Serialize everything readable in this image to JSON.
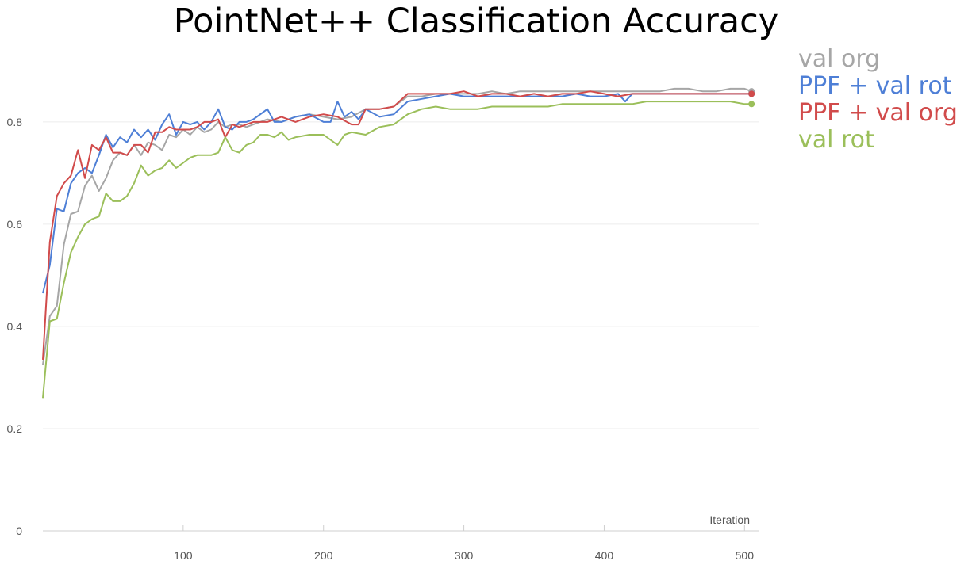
{
  "chart_data": {
    "type": "line",
    "title": "PointNet++ Classification Accuracy",
    "xlabel": "Iteration",
    "ylabel": "",
    "xlim": [
      0,
      510
    ],
    "ylim": [
      0,
      0.93
    ],
    "yticks": [
      0,
      0.2,
      0.4,
      0.6,
      0.8
    ],
    "xticks": [
      100,
      200,
      300,
      400,
      500
    ],
    "grid": true,
    "legend_position": "top-right",
    "series": [
      {
        "name": "val org",
        "color": "#a6a6a6",
        "x": [
          0,
          5,
          10,
          15,
          20,
          25,
          30,
          35,
          40,
          45,
          50,
          55,
          60,
          65,
          70,
          75,
          80,
          85,
          90,
          95,
          100,
          105,
          110,
          115,
          120,
          125,
          130,
          135,
          140,
          145,
          150,
          160,
          170,
          180,
          190,
          200,
          210,
          220,
          230,
          240,
          250,
          260,
          270,
          280,
          290,
          300,
          310,
          320,
          330,
          340,
          350,
          360,
          370,
          380,
          390,
          400,
          410,
          420,
          430,
          440,
          450,
          460,
          470,
          480,
          490,
          500,
          505
        ],
        "y": [
          0.325,
          0.42,
          0.44,
          0.56,
          0.62,
          0.625,
          0.675,
          0.695,
          0.665,
          0.69,
          0.725,
          0.74,
          0.735,
          0.755,
          0.735,
          0.76,
          0.755,
          0.745,
          0.775,
          0.77,
          0.785,
          0.775,
          0.79,
          0.78,
          0.785,
          0.8,
          0.79,
          0.795,
          0.795,
          0.79,
          0.795,
          0.805,
          0.8,
          0.81,
          0.815,
          0.81,
          0.805,
          0.81,
          0.825,
          0.825,
          0.83,
          0.85,
          0.85,
          0.855,
          0.855,
          0.855,
          0.855,
          0.86,
          0.855,
          0.86,
          0.86,
          0.86,
          0.86,
          0.86,
          0.86,
          0.86,
          0.86,
          0.86,
          0.86,
          0.86,
          0.865,
          0.865,
          0.86,
          0.86,
          0.865,
          0.865,
          0.86
        ]
      },
      {
        "name": "PPF + val rot",
        "color": "#4e7fd6",
        "x": [
          0,
          5,
          10,
          15,
          20,
          25,
          30,
          35,
          40,
          45,
          50,
          55,
          60,
          65,
          70,
          75,
          80,
          85,
          90,
          95,
          100,
          105,
          110,
          115,
          120,
          125,
          130,
          135,
          140,
          145,
          150,
          155,
          160,
          165,
          170,
          180,
          190,
          200,
          205,
          210,
          215,
          220,
          225,
          230,
          240,
          250,
          260,
          270,
          280,
          290,
          300,
          310,
          320,
          330,
          340,
          350,
          360,
          370,
          380,
          390,
          400,
          410,
          415,
          420,
          430,
          440,
          450,
          460,
          470,
          480,
          490,
          500,
          505
        ],
        "y": [
          0.465,
          0.52,
          0.63,
          0.625,
          0.68,
          0.7,
          0.71,
          0.7,
          0.735,
          0.775,
          0.75,
          0.77,
          0.76,
          0.785,
          0.77,
          0.785,
          0.765,
          0.795,
          0.815,
          0.775,
          0.8,
          0.795,
          0.8,
          0.785,
          0.8,
          0.825,
          0.79,
          0.785,
          0.8,
          0.8,
          0.805,
          0.815,
          0.825,
          0.8,
          0.8,
          0.81,
          0.815,
          0.8,
          0.8,
          0.84,
          0.81,
          0.82,
          0.805,
          0.825,
          0.81,
          0.815,
          0.84,
          0.845,
          0.85,
          0.855,
          0.85,
          0.85,
          0.85,
          0.85,
          0.85,
          0.85,
          0.85,
          0.85,
          0.855,
          0.85,
          0.85,
          0.855,
          0.84,
          0.855,
          0.855,
          0.855,
          0.855,
          0.855,
          0.855,
          0.855,
          0.855,
          0.855,
          0.855
        ]
      },
      {
        "name": "PPF + val org",
        "color": "#d14b4b",
        "x": [
          0,
          5,
          10,
          15,
          20,
          25,
          30,
          35,
          40,
          45,
          50,
          55,
          60,
          65,
          70,
          75,
          80,
          85,
          90,
          95,
          100,
          105,
          110,
          115,
          120,
          125,
          130,
          135,
          140,
          145,
          150,
          160,
          170,
          180,
          190,
          200,
          210,
          220,
          225,
          230,
          240,
          250,
          260,
          270,
          280,
          290,
          300,
          310,
          320,
          330,
          340,
          350,
          360,
          370,
          380,
          390,
          400,
          410,
          420,
          430,
          440,
          450,
          460,
          470,
          480,
          490,
          500,
          505
        ],
        "y": [
          0.335,
          0.565,
          0.655,
          0.68,
          0.695,
          0.745,
          0.69,
          0.755,
          0.745,
          0.77,
          0.74,
          0.74,
          0.735,
          0.755,
          0.755,
          0.74,
          0.78,
          0.78,
          0.79,
          0.785,
          0.785,
          0.785,
          0.79,
          0.8,
          0.8,
          0.805,
          0.77,
          0.795,
          0.79,
          0.795,
          0.8,
          0.8,
          0.81,
          0.8,
          0.81,
          0.815,
          0.81,
          0.795,
          0.795,
          0.825,
          0.825,
          0.83,
          0.855,
          0.855,
          0.855,
          0.855,
          0.86,
          0.85,
          0.855,
          0.855,
          0.85,
          0.855,
          0.85,
          0.855,
          0.855,
          0.86,
          0.855,
          0.85,
          0.855,
          0.855,
          0.855,
          0.855,
          0.855,
          0.855,
          0.855,
          0.855,
          0.855,
          0.855
        ]
      },
      {
        "name": "val rot",
        "color": "#9bbf5a",
        "x": [
          0,
          5,
          10,
          15,
          20,
          25,
          30,
          35,
          40,
          45,
          50,
          55,
          60,
          65,
          70,
          75,
          80,
          85,
          90,
          95,
          100,
          105,
          110,
          115,
          120,
          125,
          130,
          135,
          140,
          145,
          150,
          155,
          160,
          165,
          170,
          175,
          180,
          190,
          200,
          205,
          210,
          215,
          220,
          230,
          240,
          250,
          260,
          270,
          280,
          290,
          300,
          310,
          320,
          330,
          340,
          350,
          360,
          370,
          380,
          390,
          400,
          410,
          420,
          430,
          440,
          450,
          460,
          470,
          480,
          490,
          500,
          505
        ],
        "y": [
          0.26,
          0.41,
          0.415,
          0.485,
          0.545,
          0.575,
          0.6,
          0.61,
          0.615,
          0.66,
          0.645,
          0.645,
          0.655,
          0.68,
          0.715,
          0.695,
          0.705,
          0.71,
          0.725,
          0.71,
          0.72,
          0.73,
          0.735,
          0.735,
          0.735,
          0.74,
          0.77,
          0.745,
          0.74,
          0.755,
          0.76,
          0.775,
          0.775,
          0.77,
          0.78,
          0.765,
          0.77,
          0.775,
          0.775,
          0.765,
          0.755,
          0.775,
          0.78,
          0.775,
          0.79,
          0.795,
          0.815,
          0.825,
          0.83,
          0.825,
          0.825,
          0.825,
          0.83,
          0.83,
          0.83,
          0.83,
          0.83,
          0.835,
          0.835,
          0.835,
          0.835,
          0.835,
          0.835,
          0.84,
          0.84,
          0.84,
          0.84,
          0.84,
          0.84,
          0.84,
          0.835,
          0.835
        ]
      }
    ]
  }
}
